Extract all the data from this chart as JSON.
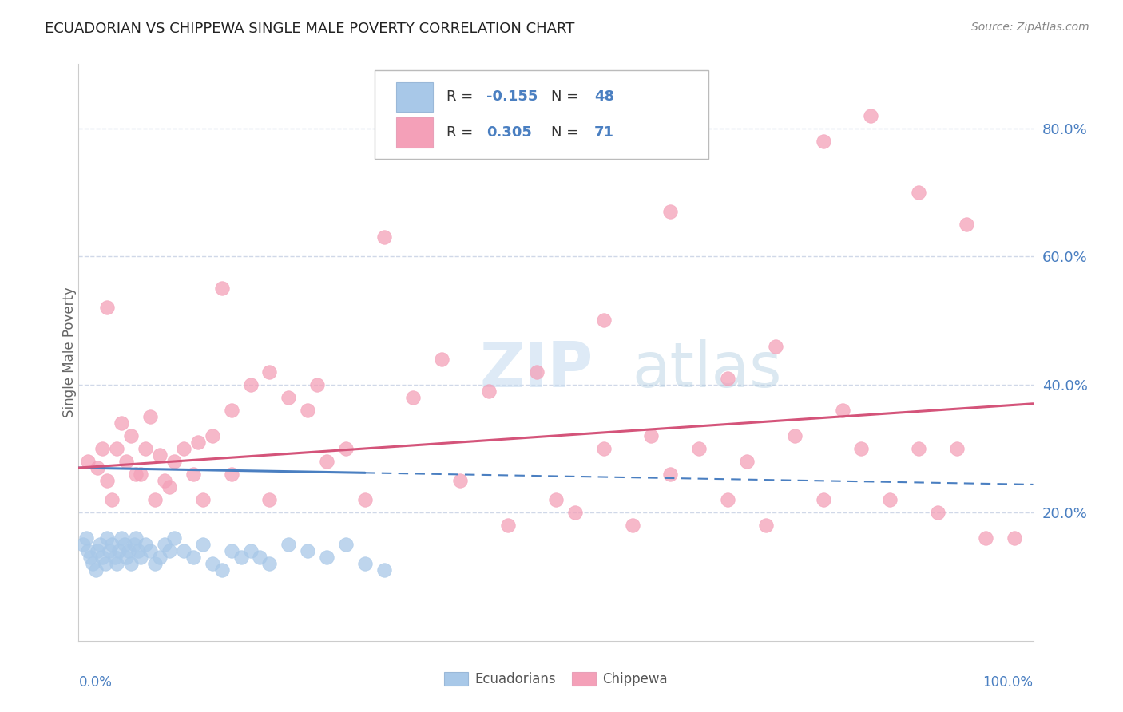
{
  "title": "ECUADORIAN VS CHIPPEWA SINGLE MALE POVERTY CORRELATION CHART",
  "source": "Source: ZipAtlas.com",
  "ylabel": "Single Male Poverty",
  "legend_label1": "Ecuadorians",
  "legend_label2": "Chippewa",
  "r1": "-0.155",
  "n1": "48",
  "r2": "0.305",
  "n2": "71",
  "blue_color": "#a8c8e8",
  "blue_line_color": "#4a7fc1",
  "pink_color": "#f4a0b8",
  "pink_line_color": "#d4547a",
  "text_color": "#4a7fc1",
  "grid_color": "#d0d8e8",
  "background_color": "#ffffff",
  "ecuadorian_x": [
    0.5,
    0.8,
    1.0,
    1.2,
    1.5,
    1.8,
    2.0,
    2.2,
    2.5,
    2.8,
    3.0,
    3.2,
    3.5,
    3.8,
    4.0,
    4.2,
    4.5,
    4.8,
    5.0,
    5.2,
    5.5,
    5.8,
    6.0,
    6.2,
    6.5,
    7.0,
    7.5,
    8.0,
    8.5,
    9.0,
    9.5,
    10.0,
    11.0,
    12.0,
    13.0,
    14.0,
    15.0,
    16.0,
    17.0,
    18.0,
    19.0,
    20.0,
    22.0,
    24.0,
    26.0,
    28.0,
    30.0,
    32.0
  ],
  "ecuadorian_y": [
    15,
    16,
    14,
    13,
    12,
    11,
    14,
    15,
    13,
    12,
    16,
    14,
    15,
    13,
    12,
    14,
    16,
    15,
    13,
    14,
    12,
    15,
    16,
    14,
    13,
    15,
    14,
    12,
    13,
    15,
    14,
    16,
    14,
    13,
    15,
    12,
    11,
    14,
    13,
    14,
    13,
    12,
    15,
    14,
    13,
    15,
    12,
    11
  ],
  "chippewa_x": [
    1.0,
    2.0,
    2.5,
    3.0,
    3.5,
    4.0,
    5.0,
    5.5,
    6.0,
    7.0,
    7.5,
    8.0,
    8.5,
    9.0,
    10.0,
    11.0,
    12.0,
    13.0,
    14.0,
    15.0,
    16.0,
    18.0,
    20.0,
    22.0,
    24.0,
    26.0,
    28.0,
    30.0,
    35.0,
    40.0,
    45.0,
    50.0,
    52.0,
    55.0,
    58.0,
    60.0,
    62.0,
    65.0,
    68.0,
    70.0,
    72.0,
    75.0,
    78.0,
    80.0,
    82.0,
    85.0,
    88.0,
    90.0,
    92.0,
    95.0,
    3.0,
    4.5,
    6.5,
    9.5,
    12.5,
    16.0,
    20.0,
    25.0,
    32.0,
    38.0,
    43.0,
    48.0,
    55.0,
    62.0,
    68.0,
    73.0,
    78.0,
    83.0,
    88.0,
    93.0,
    98.0
  ],
  "chippewa_y": [
    28,
    27,
    30,
    25,
    22,
    30,
    28,
    32,
    26,
    30,
    35,
    22,
    29,
    25,
    28,
    30,
    26,
    22,
    32,
    55,
    36,
    40,
    42,
    38,
    36,
    28,
    30,
    22,
    38,
    25,
    18,
    22,
    20,
    30,
    18,
    32,
    26,
    30,
    22,
    28,
    18,
    32,
    22,
    36,
    30,
    22,
    30,
    20,
    30,
    16,
    52,
    34,
    26,
    24,
    31,
    26,
    22,
    40,
    63,
    44,
    39,
    42,
    50,
    67,
    41,
    46,
    78,
    82,
    70,
    65,
    16
  ],
  "xlim": [
    0,
    100
  ],
  "ylim": [
    0,
    90
  ],
  "yticks": [
    20,
    40,
    60,
    80
  ],
  "watermark_zip": "ZIP",
  "watermark_atlas": "atlas"
}
